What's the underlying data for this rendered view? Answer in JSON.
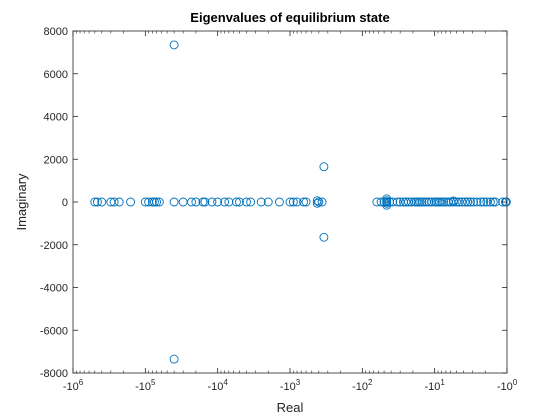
{
  "chart_data": {
    "type": "scatter",
    "title": "Eigenvalues of equilibrium state",
    "xlabel": "Real",
    "ylabel": "Imaginary",
    "x_scale": "negative-log",
    "xlim": [
      -1000000,
      -1
    ],
    "ylim": [
      -8000,
      8000
    ],
    "grid": false,
    "legend": "none",
    "marker": "circle-open",
    "marker_color": "#0072BD",
    "x_ticks": [
      {
        "value": -1000000,
        "base": "-10",
        "exp": "6"
      },
      {
        "value": -100000,
        "base": "-10",
        "exp": "5"
      },
      {
        "value": -10000,
        "base": "-10",
        "exp": "4"
      },
      {
        "value": -1000,
        "base": "-10",
        "exp": "3"
      },
      {
        "value": -100,
        "base": "-10",
        "exp": "2"
      },
      {
        "value": -10,
        "base": "-10",
        "exp": "1"
      },
      {
        "value": -1,
        "base": "-10",
        "exp": "0"
      }
    ],
    "y_ticks": [
      {
        "value": 8000,
        "label": "8000"
      },
      {
        "value": 6000,
        "label": "6000"
      },
      {
        "value": 4000,
        "label": "4000"
      },
      {
        "value": 2000,
        "label": "2000"
      },
      {
        "value": 0,
        "label": "0"
      },
      {
        "value": -2000,
        "label": "-2000"
      },
      {
        "value": -4000,
        "label": "-4000"
      },
      {
        "value": -6000,
        "label": "-6000"
      },
      {
        "value": -8000,
        "label": "-8000"
      }
    ],
    "points": [
      {
        "x": -40000,
        "y": 7350
      },
      {
        "x": -40000,
        "y": -7350
      },
      {
        "x": -340,
        "y": 1650
      },
      {
        "x": -340,
        "y": -1650
      },
      {
        "x": -46,
        "y": 150
      },
      {
        "x": -46,
        "y": -150
      },
      {
        "x": -420,
        "y": 60
      },
      {
        "x": -420,
        "y": -60
      },
      {
        "x": -46,
        "y": 60
      },
      {
        "x": -46,
        "y": -60
      },
      {
        "x": -5.5,
        "y": 50
      },
      {
        "x": -6,
        "y": 0
      },
      {
        "x": -500000,
        "y": 0
      },
      {
        "x": -460000,
        "y": 0
      },
      {
        "x": -400000,
        "y": 0
      },
      {
        "x": -300000,
        "y": 0
      },
      {
        "x": -270000,
        "y": 0
      },
      {
        "x": -230000,
        "y": 0
      },
      {
        "x": -160000,
        "y": 0
      },
      {
        "x": -100000,
        "y": 0
      },
      {
        "x": -90000,
        "y": 0
      },
      {
        "x": -80000,
        "y": 0
      },
      {
        "x": -75000,
        "y": 0
      },
      {
        "x": -70000,
        "y": 0
      },
      {
        "x": -64000,
        "y": 0
      },
      {
        "x": -40000,
        "y": 0
      },
      {
        "x": -30000,
        "y": 0
      },
      {
        "x": -23000,
        "y": 0
      },
      {
        "x": -20000,
        "y": 0
      },
      {
        "x": -16000,
        "y": 0
      },
      {
        "x": -15000,
        "y": 0
      },
      {
        "x": -12000,
        "y": 0
      },
      {
        "x": -10000,
        "y": 0
      },
      {
        "x": -8000,
        "y": 0
      },
      {
        "x": -7000,
        "y": 0
      },
      {
        "x": -5500,
        "y": 0
      },
      {
        "x": -5000,
        "y": 0
      },
      {
        "x": -4000,
        "y": 0
      },
      {
        "x": -3500,
        "y": 0
      },
      {
        "x": -2500,
        "y": 0
      },
      {
        "x": -2000,
        "y": 0
      },
      {
        "x": -1400,
        "y": 0
      },
      {
        "x": -1000,
        "y": 0
      },
      {
        "x": -900,
        "y": 0
      },
      {
        "x": -800,
        "y": 0
      },
      {
        "x": -650,
        "y": 0
      },
      {
        "x": -600,
        "y": 0
      },
      {
        "x": -400,
        "y": 0
      },
      {
        "x": -360,
        "y": 0
      },
      {
        "x": -63,
        "y": 0
      },
      {
        "x": -55,
        "y": 0
      },
      {
        "x": -50,
        "y": 0
      },
      {
        "x": -46,
        "y": 0
      },
      {
        "x": -42,
        "y": 0
      },
      {
        "x": -38,
        "y": 0
      },
      {
        "x": -33,
        "y": 0
      },
      {
        "x": -30,
        "y": 0
      },
      {
        "x": -27,
        "y": 0
      },
      {
        "x": -25,
        "y": 0
      },
      {
        "x": -23,
        "y": 0
      },
      {
        "x": -21,
        "y": 0
      },
      {
        "x": -19,
        "y": 0
      },
      {
        "x": -18,
        "y": 0
      },
      {
        "x": -17,
        "y": 0
      },
      {
        "x": -16,
        "y": 0
      },
      {
        "x": -15,
        "y": 0
      },
      {
        "x": -14,
        "y": 0
      },
      {
        "x": -13,
        "y": 0
      },
      {
        "x": -12,
        "y": 0
      },
      {
        "x": -11,
        "y": 0
      },
      {
        "x": -10,
        "y": 0
      },
      {
        "x": -9.5,
        "y": 0
      },
      {
        "x": -9,
        "y": 0
      },
      {
        "x": -8.5,
        "y": 0
      },
      {
        "x": -8,
        "y": 0
      },
      {
        "x": -7.5,
        "y": 0
      },
      {
        "x": -7,
        "y": 0
      },
      {
        "x": -6.5,
        "y": 0
      },
      {
        "x": -5.5,
        "y": 0
      },
      {
        "x": -5,
        "y": 0
      },
      {
        "x": -4.6,
        "y": 0
      },
      {
        "x": -4.2,
        "y": 0
      },
      {
        "x": -3.8,
        "y": 0
      },
      {
        "x": -3.5,
        "y": 0
      },
      {
        "x": -3.2,
        "y": 0
      },
      {
        "x": -2.9,
        "y": 0
      },
      {
        "x": -2.6,
        "y": 0
      },
      {
        "x": -2.3,
        "y": 0
      },
      {
        "x": -2.1,
        "y": 0
      },
      {
        "x": -1.9,
        "y": 0
      },
      {
        "x": -1.7,
        "y": 0
      },
      {
        "x": -1.55,
        "y": 0
      },
      {
        "x": -1.45,
        "y": 0
      },
      {
        "x": -1.15,
        "y": 0
      },
      {
        "x": -1.05,
        "y": 0
      },
      {
        "x": -1.02,
        "y": 0
      }
    ]
  }
}
